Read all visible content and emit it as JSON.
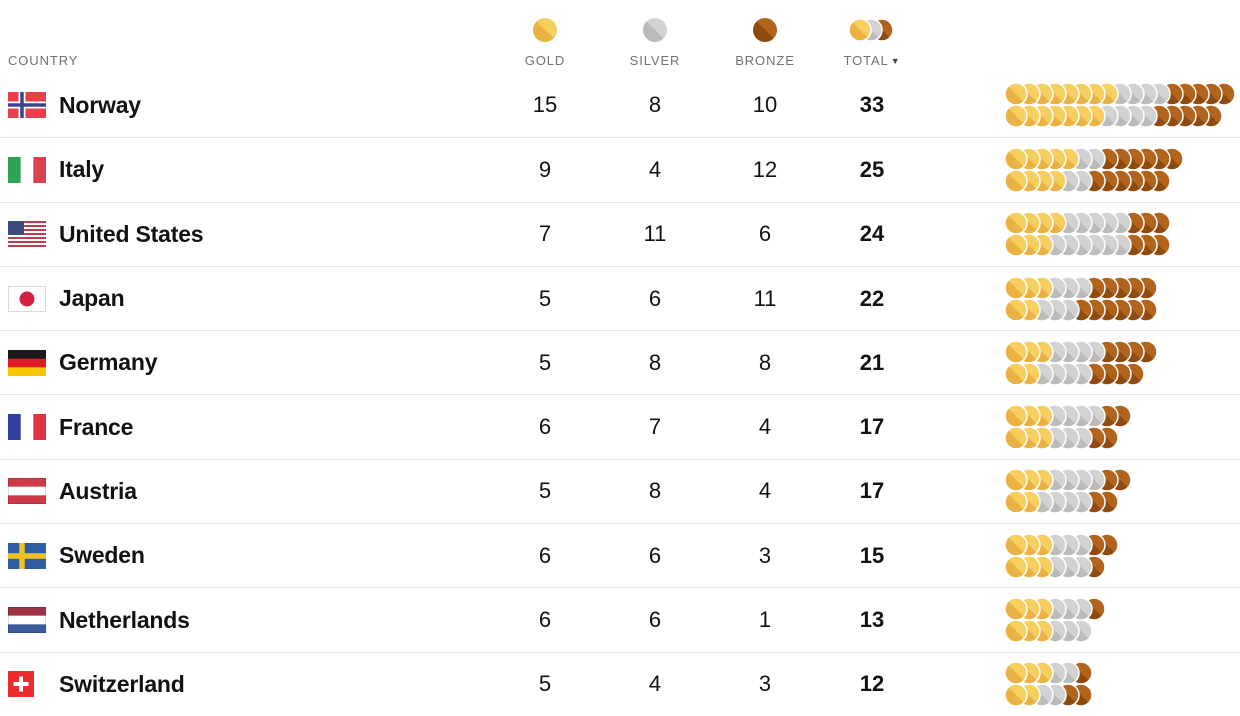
{
  "header": {
    "country_label": "COUNTRY",
    "columns": [
      {
        "key": "gold",
        "label": "GOLD"
      },
      {
        "key": "silver",
        "label": "SILVER"
      },
      {
        "key": "bronze",
        "label": "BRONZE"
      },
      {
        "key": "total",
        "label": "TOTAL",
        "sort_arrow": "▼",
        "sorted": "descending"
      }
    ]
  },
  "colors": {
    "gold_light": "#F7CE60",
    "gold_dark": "#EAB243",
    "silver_light": "#D2D2D2",
    "silver_dark": "#BBBBBB",
    "bronze_light": "#B2641C",
    "bronze_dark": "#8E4A0F",
    "separator": "#E9E9E9",
    "header_text": "#727272",
    "text": "#121212",
    "medal_outline": "#FFFFFF"
  },
  "chart_data": {
    "type": "table",
    "columns": [
      "COUNTRY",
      "GOLD",
      "SILVER",
      "BRONZE",
      "TOTAL"
    ],
    "sorted_by": "TOTAL",
    "sort_order": "descending",
    "dot_chart": {
      "description": "Each row shows one circle per medal (gold, then silver, then bronze) wrapped onto two lines alternately",
      "rows_per_country": 2
    },
    "rows": [
      {
        "country": "Norway",
        "gold": 15,
        "silver": 8,
        "bronze": 10,
        "total": 33,
        "flag": {
          "type": "nordic",
          "bg": "#E8404B",
          "bands": [
            {
              "color": "#FFFFFF",
              "width": 7
            },
            {
              "color": "#36468E",
              "width": 3.5
            }
          ]
        }
      },
      {
        "country": "Italy",
        "gold": 9,
        "silver": 4,
        "bronze": 12,
        "total": 25,
        "flag": {
          "type": "v3",
          "colors": [
            "#2EA353",
            "#FFFFFF",
            "#DD4050"
          ]
        }
      },
      {
        "country": "United States",
        "gold": 7,
        "silver": 11,
        "bronze": 6,
        "total": 24,
        "flag": {
          "type": "us",
          "stripe": "#BD3D4A",
          "canton": "#3D4B7D"
        }
      },
      {
        "country": "Japan",
        "gold": 5,
        "silver": 6,
        "bronze": 11,
        "total": 22,
        "flag": {
          "type": "disc",
          "disc": "#CE2343",
          "border": true
        }
      },
      {
        "country": "Germany",
        "gold": 5,
        "silver": 8,
        "bronze": 8,
        "total": 21,
        "flag": {
          "type": "h3",
          "colors": [
            "#1A1A1A",
            "#DF1B24",
            "#F7C600"
          ]
        }
      },
      {
        "country": "France",
        "gold": 6,
        "silver": 7,
        "bronze": 4,
        "total": 17,
        "flag": {
          "type": "v3",
          "colors": [
            "#2F3F9E",
            "#FFFFFF",
            "#E0323F"
          ]
        }
      },
      {
        "country": "Austria",
        "gold": 5,
        "silver": 8,
        "bronze": 4,
        "total": 17,
        "flag": {
          "type": "h3",
          "colors": [
            "#CF3A48",
            "#FFFFFF",
            "#CF3A48"
          ],
          "border": true
        }
      },
      {
        "country": "Sweden",
        "gold": 6,
        "silver": 6,
        "bronze": 3,
        "total": 15,
        "flag": {
          "type": "nordic",
          "bg": "#2E5FA3",
          "bands": [
            {
              "color": "#F2C320",
              "width": 5.5
            }
          ]
        }
      },
      {
        "country": "Netherlands",
        "gold": 6,
        "silver": 6,
        "bronze": 1,
        "total": 13,
        "flag": {
          "type": "h3",
          "colors": [
            "#A03245",
            "#FFFFFF",
            "#3A5C99"
          ],
          "border": true
        }
      },
      {
        "country": "Switzerland",
        "gold": 5,
        "silver": 4,
        "bronze": 3,
        "total": 12,
        "flag": {
          "type": "swiss",
          "bg": "#EE2B2F"
        }
      }
    ]
  }
}
